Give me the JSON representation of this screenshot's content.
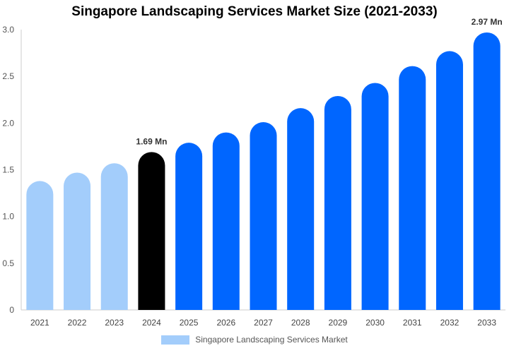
{
  "chart_data": {
    "type": "bar",
    "title": "Singapore Landscaping Services Market Size (2021-2033)",
    "categories": [
      "2021",
      "2022",
      "2023",
      "2024",
      "2025",
      "2026",
      "2027",
      "2028",
      "2029",
      "2030",
      "2031",
      "2032",
      "2033"
    ],
    "series": [
      {
        "name": "Singapore Landscaping Services Market",
        "values": [
          1.38,
          1.47,
          1.57,
          1.69,
          1.79,
          1.9,
          2.01,
          2.16,
          2.29,
          2.43,
          2.61,
          2.77,
          2.97
        ]
      }
    ],
    "bar_colors": [
      "#a3cdfb",
      "#a3cdfb",
      "#a3cdfb",
      "#000000",
      "#0066ff",
      "#0066ff",
      "#0066ff",
      "#0066ff",
      "#0066ff",
      "#0066ff",
      "#0066ff",
      "#0066ff",
      "#0066ff"
    ],
    "data_labels": [
      {
        "index": 3,
        "text": "1.69 Mn"
      },
      {
        "index": 12,
        "text": "2.97 Mn"
      }
    ],
    "y_ticks": [
      "0",
      "0.5",
      "1.0",
      "1.5",
      "2.0",
      "2.5",
      "3.0"
    ],
    "ylim": [
      0,
      3.0
    ],
    "xlabel": "",
    "ylabel": "",
    "grid": false,
    "legend": {
      "position": "bottom",
      "color": "#a3cdfb"
    }
  }
}
